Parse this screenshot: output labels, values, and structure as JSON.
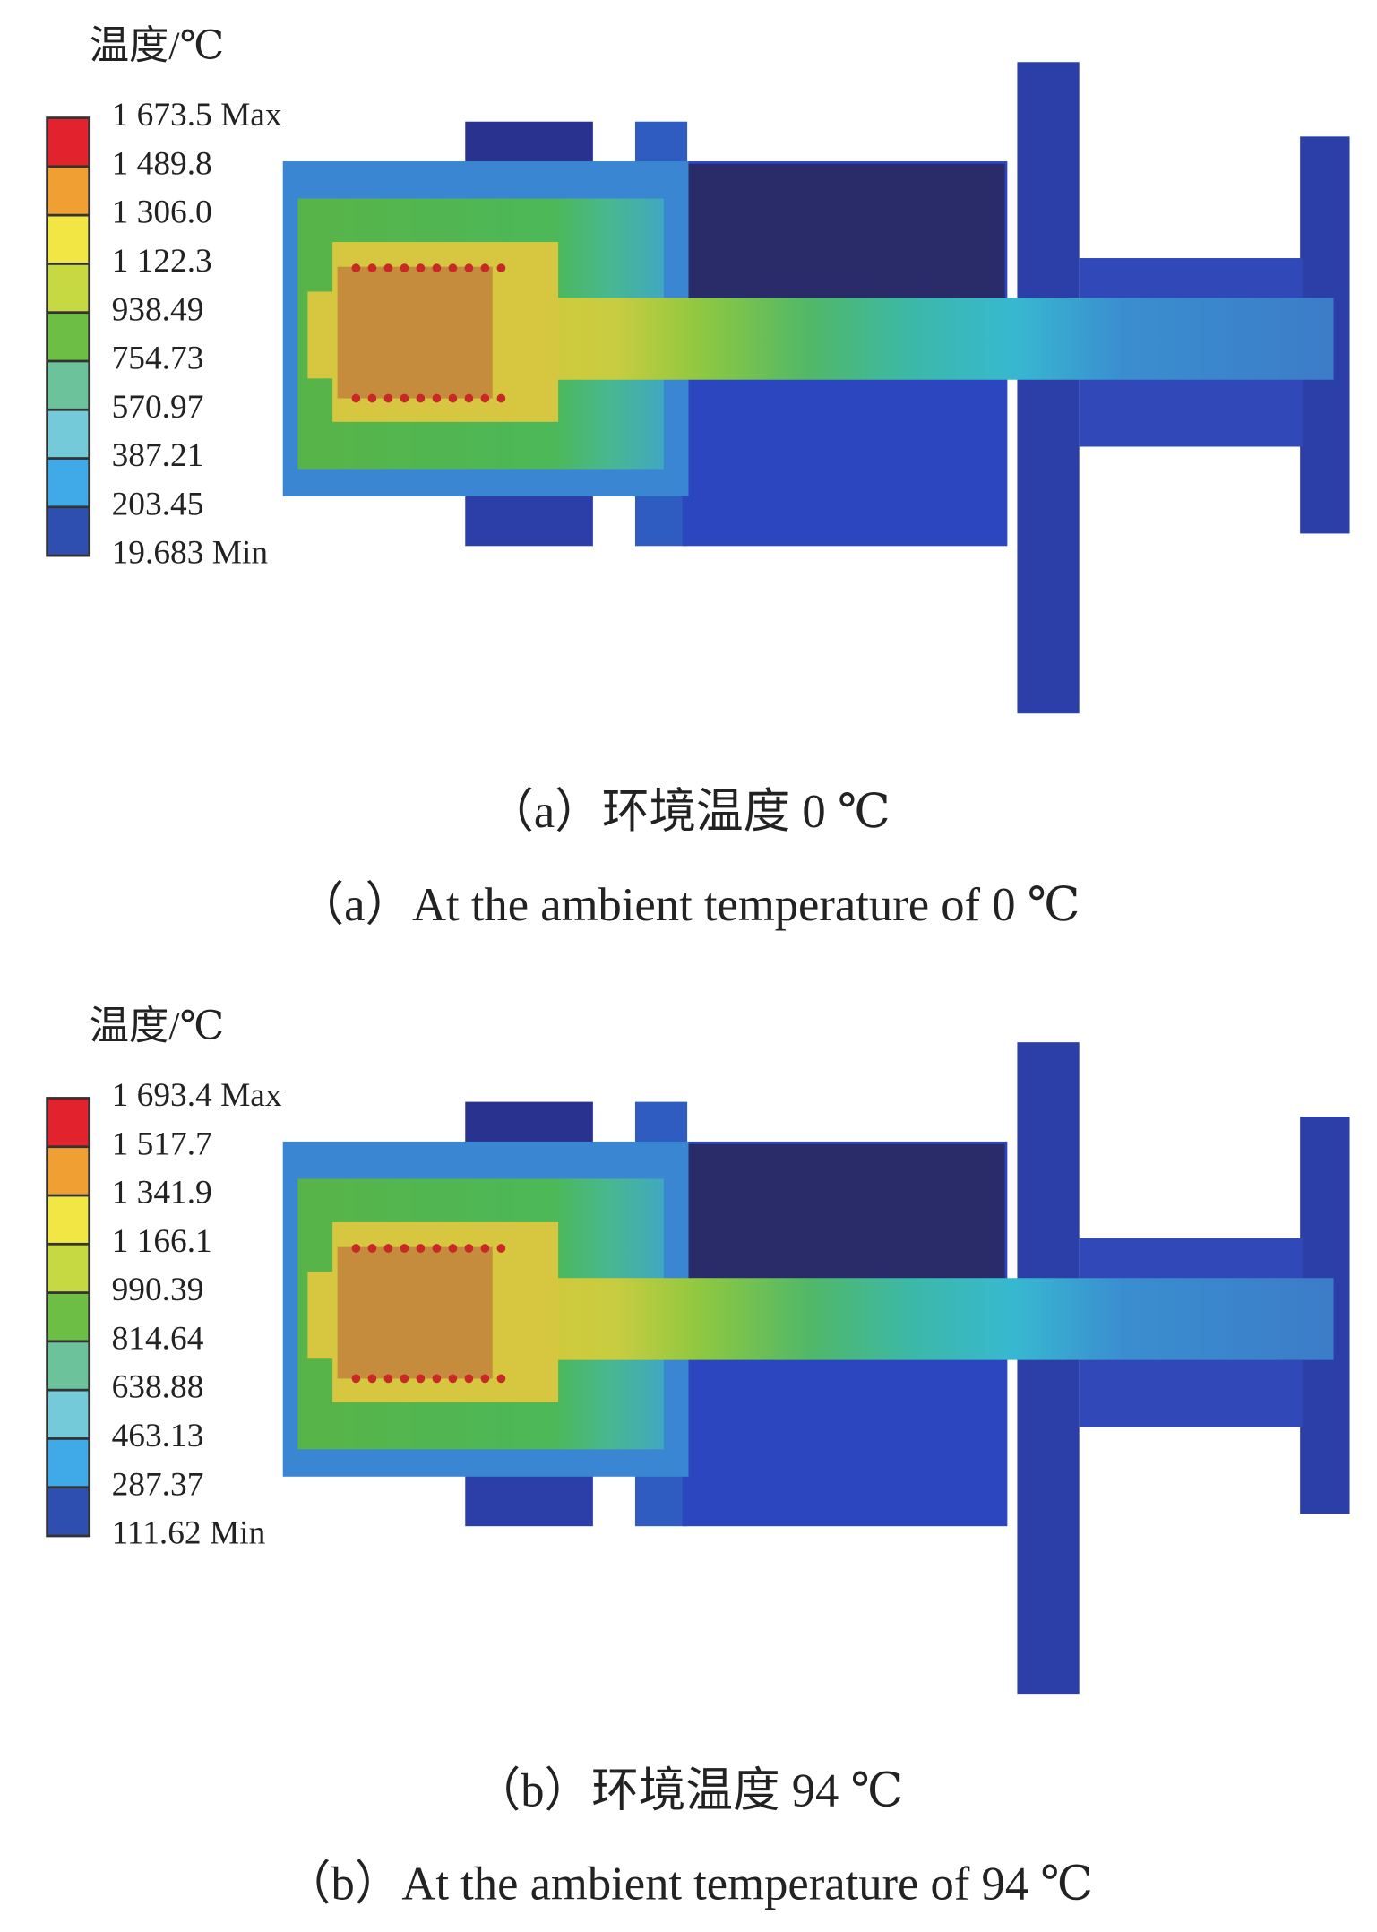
{
  "panels": [
    {
      "legend_title": "温度/℃",
      "legend_labels": [
        "1 673.5 Max",
        "1 489.8",
        "1 306.0",
        "1 122.3",
        "938.49",
        "754.73",
        "570.97",
        "387.21",
        "203.45",
        "19.683 Min"
      ],
      "caption_cn": "（a）环境温度 0 ℃",
      "caption_en": "（a）At the ambient temperature of 0 ℃"
    },
    {
      "legend_title": "温度/℃",
      "legend_labels": [
        "1 693.4 Max",
        "1 517.7",
        "1 341.9",
        "1 166.1",
        "990.39",
        "814.64",
        "638.88",
        "463.13",
        "287.37",
        "111.62 Min"
      ],
      "caption_cn": "（b）环境温度 94 ℃",
      "caption_en": "（b）At the ambient temperature of 94 ℃"
    }
  ]
}
